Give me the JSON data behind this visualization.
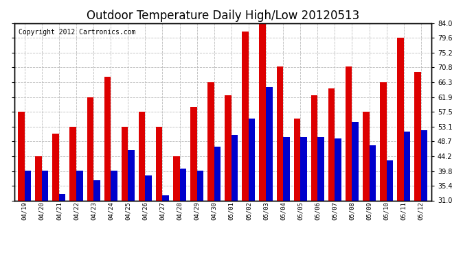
{
  "title": "Outdoor Temperature Daily High/Low 20120513",
  "copyright": "Copyright 2012 Cartronics.com",
  "dates": [
    "04/19",
    "04/20",
    "04/21",
    "04/22",
    "04/23",
    "04/24",
    "04/25",
    "04/26",
    "04/27",
    "04/28",
    "04/29",
    "04/30",
    "05/01",
    "05/02",
    "05/03",
    "05/04",
    "05/05",
    "05/06",
    "05/07",
    "05/08",
    "05/09",
    "05/10",
    "05/11",
    "05/12"
  ],
  "highs": [
    57.5,
    44.2,
    51.0,
    53.1,
    61.9,
    68.0,
    53.1,
    57.5,
    53.1,
    44.2,
    59.0,
    66.3,
    62.5,
    81.5,
    84.0,
    71.0,
    55.5,
    62.5,
    64.5,
    71.0,
    57.5,
    66.3,
    79.6,
    69.5
  ],
  "lows": [
    40.0,
    40.0,
    33.0,
    40.0,
    37.0,
    40.0,
    46.0,
    38.5,
    32.5,
    40.5,
    40.0,
    47.0,
    50.5,
    55.5,
    65.0,
    50.0,
    50.0,
    50.0,
    49.5,
    54.5,
    47.5,
    43.0,
    51.5,
    52.0
  ],
  "high_color": "#dd0000",
  "low_color": "#0000cc",
  "bg_color": "#ffffff",
  "grid_color": "#bbbbbb",
  "ylim": [
    31.0,
    84.0
  ],
  "yticks": [
    31.0,
    35.4,
    39.8,
    44.2,
    48.7,
    53.1,
    57.5,
    61.9,
    66.3,
    70.8,
    75.2,
    79.6,
    84.0
  ],
  "title_fontsize": 12,
  "copyright_fontsize": 7,
  "bar_width": 0.38
}
